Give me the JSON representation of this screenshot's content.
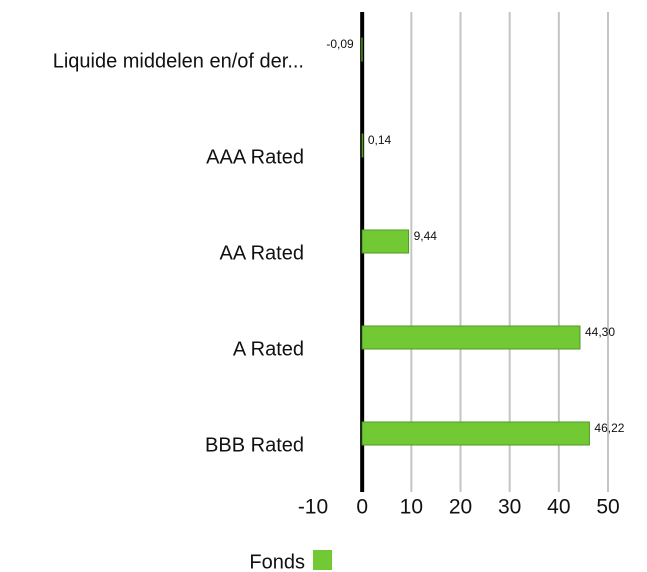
{
  "chart_data": {
    "type": "bar",
    "orientation": "horizontal",
    "categories": [
      "Liquide middelen en/of der...",
      "AAA Rated",
      "AA Rated",
      "A Rated",
      "BBB Rated"
    ],
    "series": [
      {
        "name": "Fonds",
        "color": "#72c934",
        "values": [
          -0.09,
          0.14,
          9.44,
          44.3,
          46.22
        ],
        "value_labels": [
          "-0,09",
          "0,14",
          "9,44",
          "44,30",
          "46,22"
        ]
      }
    ],
    "xlim": [
      -10,
      50
    ],
    "xticks": [
      -10,
      0,
      10,
      20,
      30,
      40,
      50
    ],
    "grid": true,
    "legend": "bottom"
  }
}
